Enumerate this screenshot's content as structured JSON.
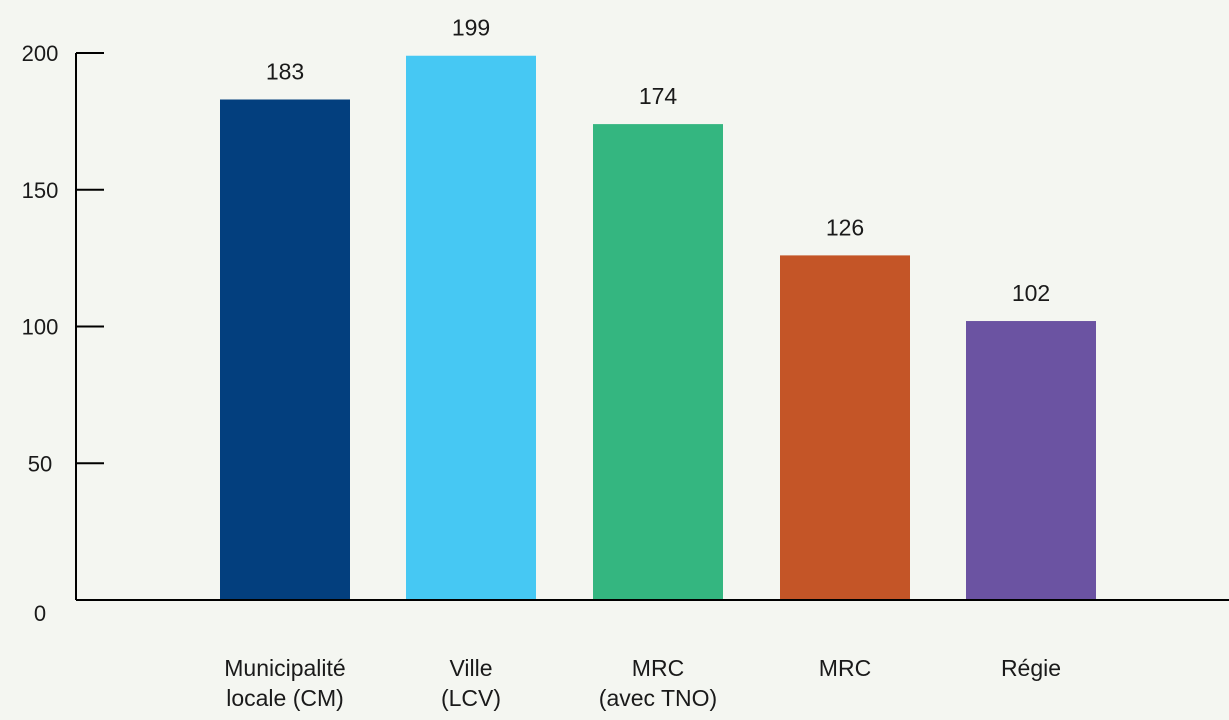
{
  "chart_data": {
    "type": "bar",
    "categories": [
      [
        "Municipalité",
        "locale (CM)"
      ],
      [
        "Ville",
        "(LCV)"
      ],
      [
        "MRC",
        "(avec TNO)"
      ],
      [
        "MRC"
      ],
      [
        "Régie"
      ]
    ],
    "values": [
      183,
      199,
      174,
      126,
      102
    ],
    "value_labels": [
      "183",
      "199",
      "174",
      "126",
      "102"
    ],
    "colors": [
      "#033f7e",
      "#46c8f3",
      "#34b680",
      "#c45527",
      "#6b53a2"
    ],
    "ylim": [
      0,
      200
    ],
    "yticks": [
      0,
      50,
      100,
      150,
      200
    ],
    "ytick_labels": [
      "0",
      "50",
      "100",
      "150",
      "200"
    ],
    "grid": false,
    "axis_color": "#000000"
  }
}
